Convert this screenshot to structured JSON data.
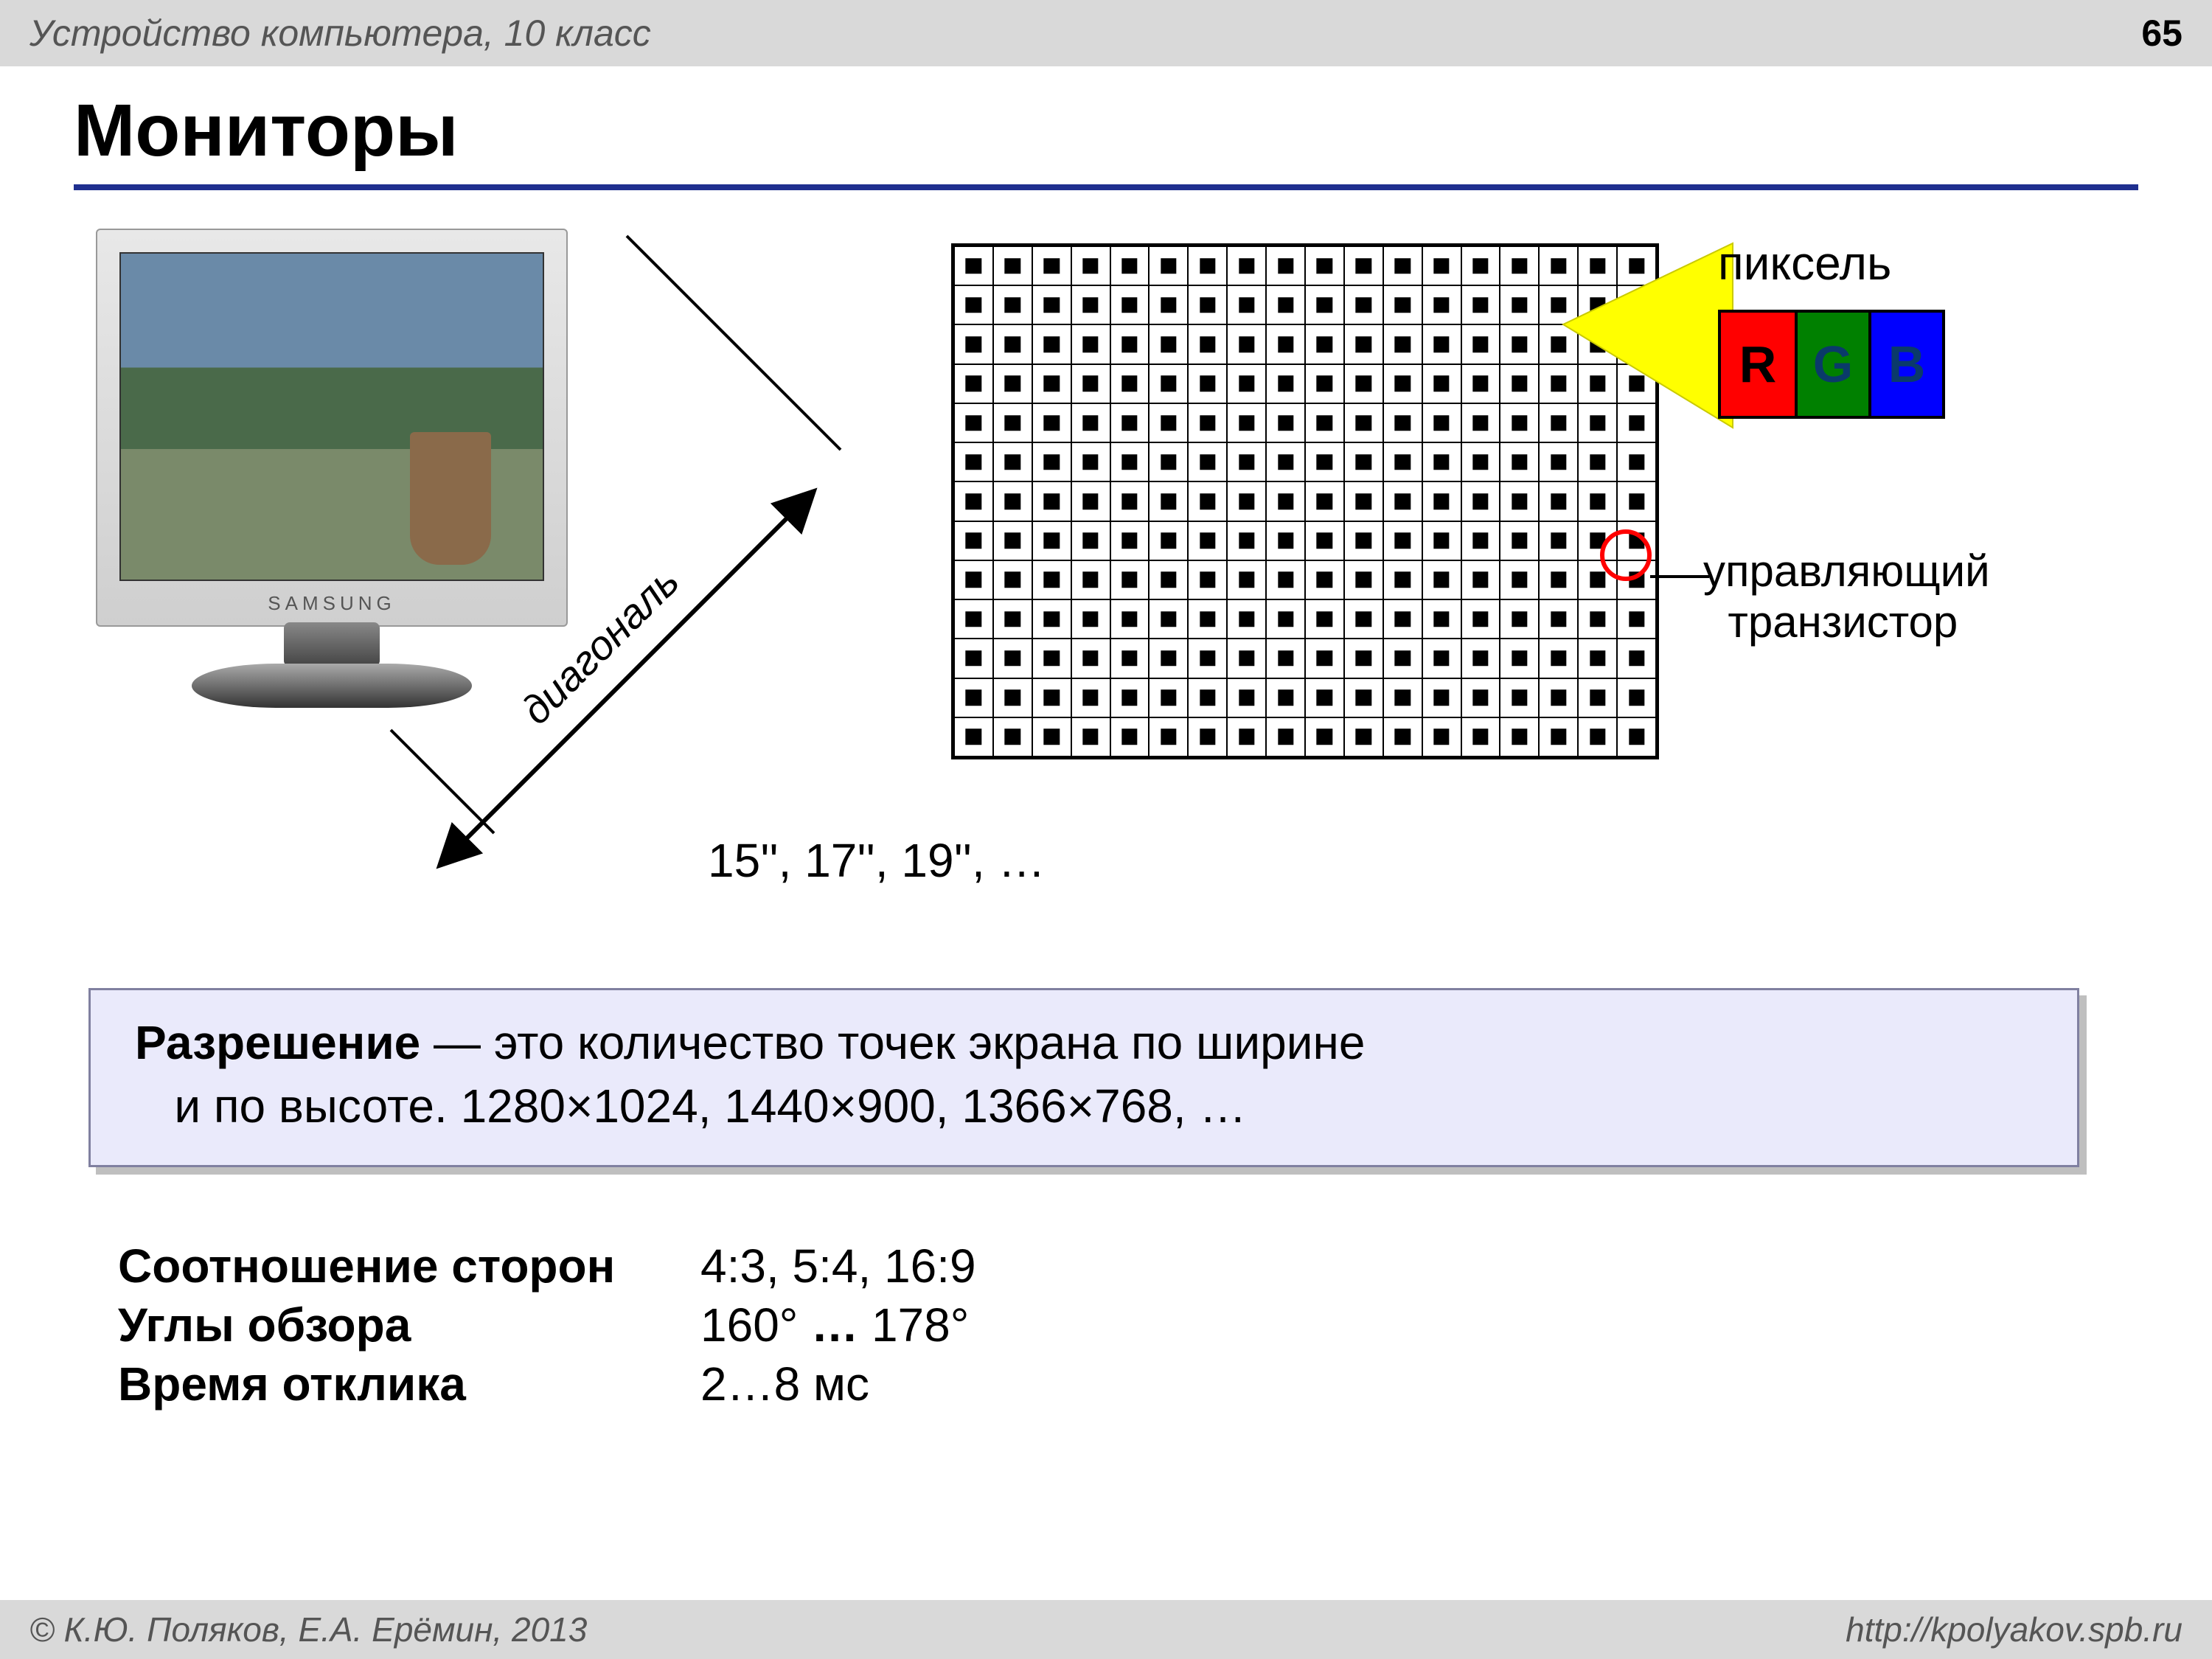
{
  "header": {
    "subject": "Устройство компьютера, 10 класс",
    "page_number": "65"
  },
  "title": "Мониторы",
  "title_rule_color": "#1f2f8f",
  "monitor": {
    "brand": "SAMSUNG"
  },
  "diagonal": {
    "label": "диагональ",
    "sizes": "15'', 17'', 19'', …"
  },
  "pixel": {
    "label": "пиксель",
    "grid": {
      "cols": 18,
      "rows": 13
    },
    "rgb": {
      "r": {
        "letter": "R",
        "bg": "#ff0000",
        "fg": "#000000"
      },
      "g": {
        "letter": "G",
        "bg": "#008000",
        "fg": "#0a3a6a"
      },
      "b": {
        "letter": "B",
        "bg": "#0000ff",
        "fg": "#0a3a6a"
      }
    },
    "zoom_color": "#ffff00",
    "transistor": {
      "label_line1": "управляющий",
      "label_line2": "транзистор",
      "circle_color": "#ff0000"
    }
  },
  "resolution_box": {
    "term": "Разрешение",
    "definition_part1": " — это количество точек экрана по ширине",
    "definition_part2": "и по высоте.  1280×1024, 1440×900, 1366×768, …",
    "bg": "#eaeafb",
    "border": "#8080a0",
    "shadow": "#bfbfbf"
  },
  "specs": [
    {
      "label": "Соотношение сторон",
      "value": "4:3, 5:4, 16:9"
    },
    {
      "label": "Углы обзора",
      "value": "160° … 178°"
    },
    {
      "label": "Время отклика",
      "value": "2…8 мс"
    }
  ],
  "footer": {
    "left": "© К.Ю. Поляков, Е.А. Ерёмин, 2013",
    "right": "http://kpolyakov.spb.ru"
  }
}
